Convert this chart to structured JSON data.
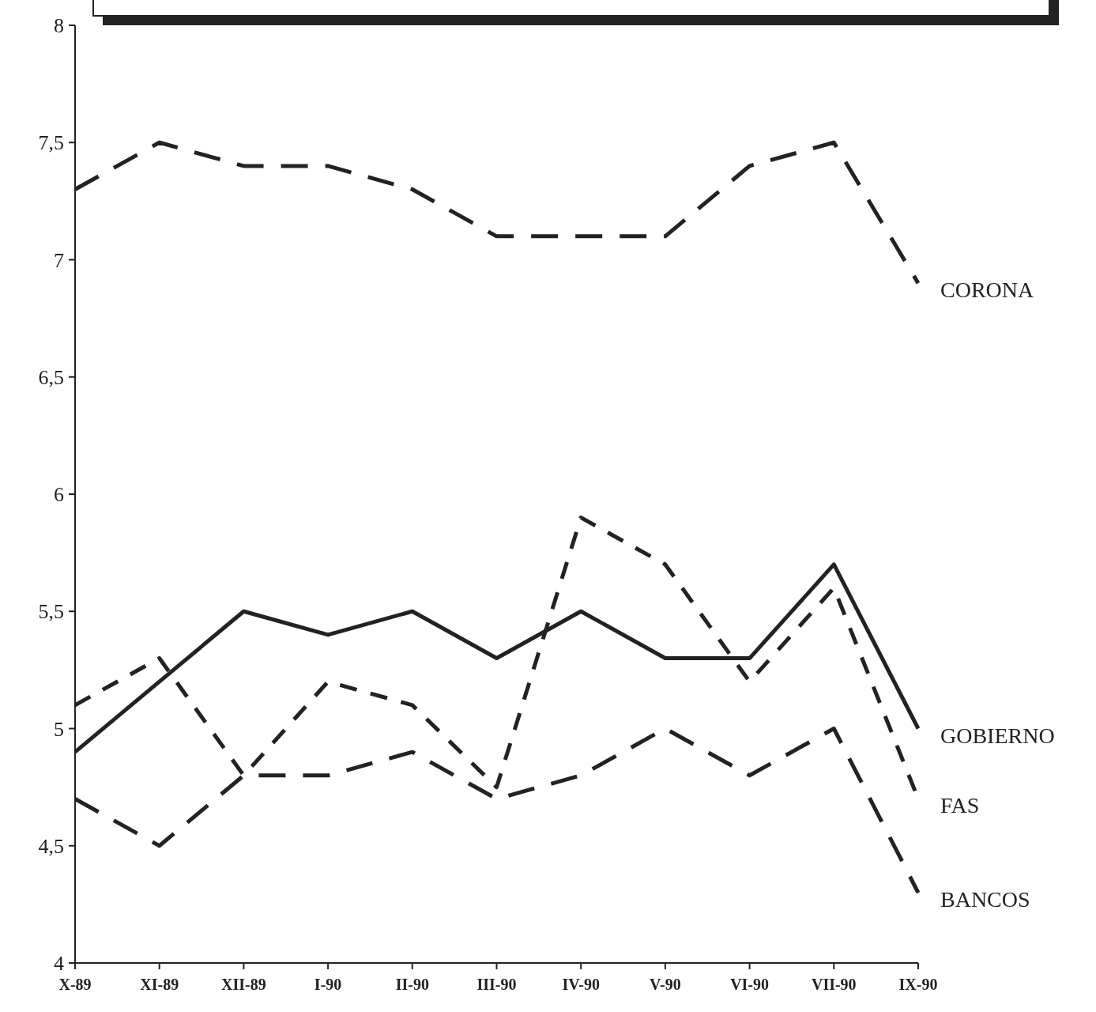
{
  "chart_data": {
    "type": "line",
    "categories": [
      "X-89",
      "XI-89",
      "XII-89",
      "I-90",
      "II-90",
      "III-90",
      "IV-90",
      "V-90",
      "VI-90",
      "VII-90",
      "IX-90"
    ],
    "series": [
      {
        "name": "CORONA",
        "color": "#222222",
        "line_style": "dashed",
        "values": [
          7.3,
          7.5,
          7.4,
          7.4,
          7.3,
          7.1,
          7.1,
          7.1,
          7.4,
          7.5,
          6.9
        ]
      },
      {
        "name": "GOBIERNO",
        "color": "#222222",
        "line_style": "solid",
        "values": [
          4.9,
          5.2,
          5.5,
          5.4,
          5.5,
          5.3,
          5.5,
          5.3,
          5.3,
          5.7,
          5.0
        ]
      },
      {
        "name": "FAS",
        "color": "#222222",
        "line_style": "dashed",
        "values": [
          5.1,
          5.3,
          4.8,
          5.2,
          5.1,
          4.75,
          5.9,
          5.7,
          5.2,
          5.6,
          4.7
        ]
      },
      {
        "name": "BANCOS",
        "color": "#222222",
        "line_style": "dashed",
        "values": [
          4.7,
          4.5,
          4.8,
          4.8,
          4.9,
          4.7,
          4.8,
          5.0,
          4.8,
          5.0,
          4.3
        ]
      }
    ],
    "ylim": [
      4,
      8
    ],
    "yticks": [
      4,
      {
        "value": 4.5,
        "label": "4,5"
      },
      5,
      {
        "value": 5.5,
        "label": "5,5"
      },
      6,
      {
        "value": 6.5,
        "label": "6,5"
      },
      7,
      {
        "value": 7.5,
        "label": "7,5"
      },
      8
    ],
    "grid": false
  }
}
